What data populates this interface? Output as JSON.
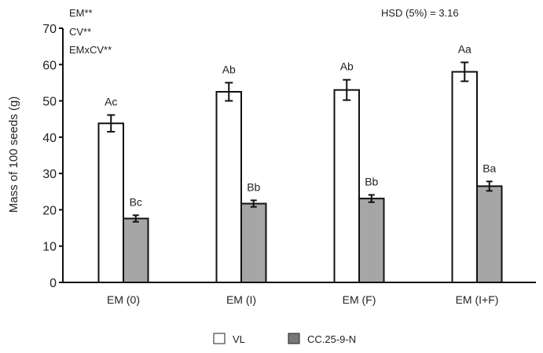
{
  "chart_data": {
    "type": "bar",
    "title": "",
    "xlabel": "",
    "ylabel": "Mass of 100 seeds (g)",
    "ylim": [
      0,
      70
    ],
    "yticks": [
      0,
      10,
      20,
      30,
      40,
      50,
      60,
      70
    ],
    "categories": [
      "EM (0)",
      "EM (I)",
      "EM (F)",
      "EM (I+F)"
    ],
    "series": [
      {
        "name": "VL",
        "color": "#ffffff",
        "values": [
          43.8,
          52.5,
          53.0,
          58.0
        ],
        "errors": [
          2.3,
          2.5,
          2.8,
          2.6
        ],
        "labels": [
          "Ac",
          "Ab",
          "Ab",
          "Aa"
        ]
      },
      {
        "name": "CC.25-9-N",
        "color": "#a6a6a6",
        "values": [
          17.6,
          21.7,
          23.1,
          26.5
        ],
        "errors": [
          0.9,
          0.9,
          1.0,
          1.3
        ],
        "labels": [
          "Bc",
          "Bb",
          "Bb",
          "Ba"
        ]
      }
    ],
    "annotations": {
      "significance": [
        "EM**",
        "CV**",
        "EMxCV**"
      ],
      "hsd": "HSD (5%) = 3.16"
    },
    "grid": false,
    "legend_position": "bottom-center"
  }
}
